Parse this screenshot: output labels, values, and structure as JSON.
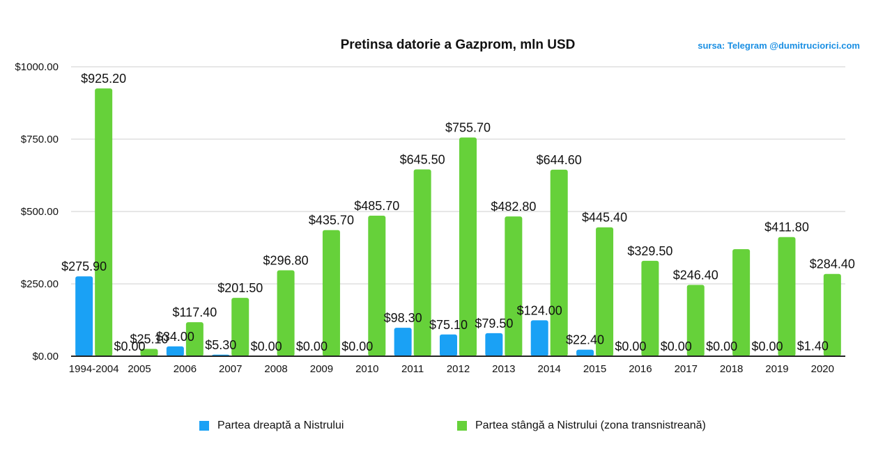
{
  "chart_data": {
    "type": "bar",
    "title": "Pretinsa datorie a Gazprom, mln USD",
    "source_note": "sursa: Telegram @dumitruciorici.com",
    "categories": [
      "1994-2004",
      "2005",
      "2006",
      "2007",
      "2008",
      "2009",
      "2010",
      "2011",
      "2012",
      "2013",
      "2014",
      "2015",
      "2016",
      "2017",
      "2018",
      "2019",
      "2020"
    ],
    "ylim": [
      0,
      1000
    ],
    "yticks": [
      "$0.00",
      "$250.00",
      "$500.00",
      "$750.00",
      "$1000.00"
    ],
    "ytick_values": [
      0,
      250,
      500,
      750,
      1000
    ],
    "grid": true,
    "legend_position": "bottom",
    "series": [
      {
        "name": "Partea dreaptă a Nistrului",
        "color": "#1aa1f5",
        "values": [
          275.9,
          0,
          34.0,
          5.3,
          0,
          0,
          0,
          98.3,
          75.1,
          79.5,
          124.0,
          22.4,
          0,
          0,
          0,
          0,
          1.4
        ],
        "labels": [
          "$275.90",
          "$0.00",
          "$34.00",
          "$5.30",
          "$0.00",
          "$0.00",
          "$0.00",
          "$98.30",
          "$75.10",
          "$79.50",
          "$124.00",
          "$22.40",
          "$0.00",
          "$0.00",
          "$0.00",
          "$0.00",
          "$1.40"
        ]
      },
      {
        "name": "Partea stângă a Nistrului (zona transnistreană)",
        "color": "#66d13a",
        "values": [
          925.2,
          25.1,
          117.4,
          201.5,
          296.8,
          435.7,
          485.7,
          645.5,
          755.7,
          482.8,
          644.6,
          445.4,
          329.5,
          246.4,
          370,
          411.8,
          284.4
        ],
        "labels": [
          "$925.20",
          "$25.10",
          "$117.40",
          "$201.50",
          "$296.80",
          "$435.70",
          "$485.70",
          "$645.50",
          "$755.70",
          "$482.80",
          "$644.60",
          "$445.40",
          "$329.50",
          "$246.40",
          "",
          "$411.80",
          "$284.40"
        ]
      }
    ]
  }
}
